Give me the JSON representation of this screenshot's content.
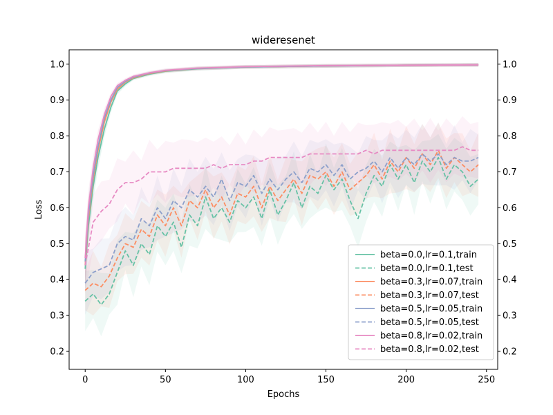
{
  "chart_data": {
    "type": "line",
    "title": "wideresenet",
    "xlabel": "Epochs",
    "ylabel": "Loss",
    "xlim": [
      -10,
      257
    ],
    "ylim": [
      0.15,
      1.04
    ],
    "x_ticks": [
      0,
      50,
      100,
      150,
      200,
      250
    ],
    "y_ticks": [
      0.2,
      0.3,
      0.4,
      0.5,
      0.6,
      0.7,
      0.8,
      0.9,
      1.0
    ],
    "y_tick_labels": [
      "0.2",
      "0.3",
      "0.4",
      "0.5",
      "0.6",
      "0.7",
      "0.8",
      "0.9",
      "1.0"
    ],
    "right_axis_mirror": true,
    "grid": false,
    "legend_position": "lower-right",
    "series": [
      {
        "name": "beta=0.0,lr=0.1,train",
        "color": "#66c2a5",
        "dash": "solid",
        "x": [
          0,
          2,
          5,
          8,
          12,
          16,
          20,
          25,
          30,
          40,
          50,
          70,
          100,
          150,
          200,
          245
        ],
        "y": [
          0.43,
          0.55,
          0.66,
          0.74,
          0.82,
          0.88,
          0.925,
          0.945,
          0.96,
          0.972,
          0.98,
          0.987,
          0.992,
          0.995,
          0.997,
          0.998
        ]
      },
      {
        "name": "beta=0.0,lr=0.1,test",
        "color": "#66c2a5",
        "dash": "dashed",
        "x": [
          0,
          5,
          10,
          15,
          20,
          25,
          30,
          35,
          40,
          45,
          50,
          55,
          60,
          65,
          70,
          75,
          80,
          85,
          90,
          95,
          100,
          105,
          110,
          115,
          120,
          125,
          130,
          135,
          140,
          145,
          150,
          155,
          160,
          165,
          170,
          175,
          180,
          185,
          190,
          195,
          200,
          205,
          210,
          215,
          220,
          225,
          230,
          235,
          240,
          245
        ],
        "y": [
          0.34,
          0.36,
          0.33,
          0.36,
          0.42,
          0.48,
          0.44,
          0.5,
          0.47,
          0.55,
          0.52,
          0.56,
          0.49,
          0.58,
          0.55,
          0.63,
          0.57,
          0.6,
          0.56,
          0.62,
          0.6,
          0.63,
          0.57,
          0.65,
          0.58,
          0.62,
          0.67,
          0.6,
          0.66,
          0.64,
          0.69,
          0.65,
          0.68,
          0.62,
          0.57,
          0.64,
          0.69,
          0.66,
          0.72,
          0.68,
          0.72,
          0.67,
          0.73,
          0.7,
          0.74,
          0.68,
          0.72,
          0.7,
          0.66,
          0.68
        ]
      },
      {
        "name": "beta=0.3,lr=0.07,train",
        "color": "#fc8d62",
        "dash": "solid",
        "x": [
          0,
          2,
          5,
          8,
          12,
          16,
          20,
          25,
          30,
          40,
          50,
          70,
          100,
          150,
          200,
          245
        ],
        "y": [
          0.44,
          0.57,
          0.68,
          0.76,
          0.84,
          0.895,
          0.93,
          0.95,
          0.962,
          0.974,
          0.981,
          0.988,
          0.992,
          0.995,
          0.997,
          0.998
        ]
      },
      {
        "name": "beta=0.3,lr=0.07,test",
        "color": "#fc8d62",
        "dash": "dashed",
        "x": [
          0,
          5,
          10,
          15,
          20,
          25,
          30,
          35,
          40,
          45,
          50,
          55,
          60,
          65,
          70,
          75,
          80,
          85,
          90,
          95,
          100,
          105,
          110,
          115,
          120,
          125,
          130,
          135,
          140,
          145,
          150,
          155,
          160,
          165,
          170,
          175,
          180,
          185,
          190,
          195,
          200,
          205,
          210,
          215,
          220,
          225,
          230,
          235,
          240,
          245
        ],
        "y": [
          0.37,
          0.39,
          0.38,
          0.41,
          0.46,
          0.5,
          0.49,
          0.54,
          0.52,
          0.58,
          0.55,
          0.6,
          0.55,
          0.62,
          0.6,
          0.65,
          0.6,
          0.63,
          0.58,
          0.64,
          0.63,
          0.66,
          0.6,
          0.66,
          0.62,
          0.65,
          0.68,
          0.64,
          0.69,
          0.68,
          0.7,
          0.66,
          0.7,
          0.65,
          0.67,
          0.69,
          0.72,
          0.68,
          0.73,
          0.7,
          0.74,
          0.71,
          0.75,
          0.72,
          0.76,
          0.71,
          0.74,
          0.72,
          0.7,
          0.72
        ]
      },
      {
        "name": "beta=0.5,lr=0.05,train",
        "color": "#8da0cb",
        "dash": "solid",
        "x": [
          0,
          2,
          5,
          8,
          12,
          16,
          20,
          25,
          30,
          40,
          50,
          70,
          100,
          150,
          200,
          245
        ],
        "y": [
          0.45,
          0.58,
          0.69,
          0.77,
          0.85,
          0.9,
          0.935,
          0.952,
          0.964,
          0.975,
          0.982,
          0.988,
          0.992,
          0.995,
          0.997,
          0.998
        ]
      },
      {
        "name": "beta=0.5,lr=0.05,test",
        "color": "#8da0cb",
        "dash": "dashed",
        "x": [
          0,
          5,
          10,
          15,
          20,
          25,
          30,
          35,
          40,
          45,
          50,
          55,
          60,
          65,
          70,
          75,
          80,
          85,
          90,
          95,
          100,
          105,
          110,
          115,
          120,
          125,
          130,
          135,
          140,
          145,
          150,
          155,
          160,
          165,
          170,
          175,
          180,
          185,
          190,
          195,
          200,
          205,
          210,
          215,
          220,
          225,
          230,
          235,
          240,
          245
        ],
        "y": [
          0.39,
          0.42,
          0.43,
          0.44,
          0.5,
          0.52,
          0.51,
          0.57,
          0.55,
          0.6,
          0.57,
          0.62,
          0.6,
          0.65,
          0.63,
          0.66,
          0.63,
          0.68,
          0.62,
          0.67,
          0.66,
          0.69,
          0.64,
          0.68,
          0.65,
          0.68,
          0.7,
          0.67,
          0.71,
          0.7,
          0.72,
          0.69,
          0.72,
          0.68,
          0.7,
          0.71,
          0.73,
          0.7,
          0.74,
          0.71,
          0.74,
          0.72,
          0.75,
          0.73,
          0.75,
          0.72,
          0.74,
          0.73,
          0.73,
          0.74
        ]
      },
      {
        "name": "beta=0.8,lr=0.02,train",
        "color": "#e78ac3",
        "dash": "solid",
        "x": [
          0,
          2,
          5,
          8,
          12,
          16,
          20,
          25,
          30,
          40,
          50,
          70,
          100,
          150,
          200,
          245
        ],
        "y": [
          0.46,
          0.6,
          0.71,
          0.79,
          0.86,
          0.91,
          0.94,
          0.955,
          0.966,
          0.976,
          0.983,
          0.989,
          0.993,
          0.996,
          0.997,
          0.998
        ]
      },
      {
        "name": "beta=0.8,lr=0.02,test",
        "color": "#e78ac3",
        "dash": "dashed",
        "x": [
          0,
          5,
          10,
          15,
          20,
          25,
          30,
          35,
          40,
          45,
          50,
          55,
          60,
          65,
          70,
          75,
          80,
          85,
          90,
          95,
          100,
          105,
          110,
          115,
          120,
          125,
          130,
          135,
          140,
          145,
          150,
          155,
          160,
          165,
          170,
          175,
          180,
          185,
          190,
          195,
          200,
          205,
          210,
          215,
          220,
          225,
          230,
          235,
          240,
          245
        ],
        "y": [
          0.44,
          0.56,
          0.59,
          0.61,
          0.65,
          0.67,
          0.67,
          0.68,
          0.7,
          0.7,
          0.7,
          0.71,
          0.71,
          0.71,
          0.71,
          0.71,
          0.72,
          0.71,
          0.72,
          0.72,
          0.72,
          0.73,
          0.73,
          0.74,
          0.74,
          0.74,
          0.74,
          0.74,
          0.75,
          0.75,
          0.75,
          0.75,
          0.75,
          0.75,
          0.75,
          0.76,
          0.75,
          0.76,
          0.76,
          0.76,
          0.76,
          0.76,
          0.76,
          0.76,
          0.76,
          0.76,
          0.76,
          0.77,
          0.76,
          0.76
        ]
      }
    ]
  }
}
